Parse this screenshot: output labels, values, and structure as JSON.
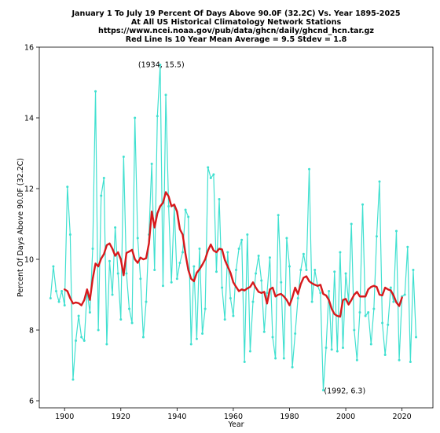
{
  "chart_data": {
    "type": "line",
    "title_lines": [
      "January 1 To July 19 Percent Of Days Above 90.0F (32.2C) Vs. Year 1895-2025",
      "At All US Historical Climatology Network Stations",
      "https://www.ncei.noaa.gov/pub/data/ghcn/daily/ghcnd_hcn.tar.gz",
      "Red Line Is 10 Year Mean  Average = 9.5 Stdev = 1.8"
    ],
    "xlabel": "Year",
    "ylabel": "Percent Of Days Above 90.0F (32.2C)",
    "xlim": [
      1891,
      2031
    ],
    "ylim": [
      5.8,
      16.0
    ],
    "xticks": [
      "1900",
      "1920",
      "1940",
      "1960",
      "1980",
      "2000",
      "2020"
    ],
    "yticks": [
      "6",
      "8",
      "10",
      "12",
      "14",
      "16"
    ],
    "annotations": [
      {
        "text": "(1934, 15.5)",
        "x": 1934,
        "y": 15.5
      },
      {
        "text": "(1992, 6.3)",
        "x": 1992,
        "y": 6.3
      }
    ],
    "colors": {
      "annual": "#40e0d0",
      "mean": "#d7191c"
    },
    "series": [
      {
        "role": "annual",
        "x": [
          1895,
          1896,
          1897,
          1898,
          1899,
          1900,
          1901,
          1902,
          1903,
          1904,
          1905,
          1906,
          1907,
          1908,
          1909,
          1910,
          1911,
          1912,
          1913,
          1914,
          1915,
          1916,
          1917,
          1918,
          1919,
          1920,
          1921,
          1922,
          1923,
          1924,
          1925,
          1926,
          1927,
          1928,
          1929,
          1930,
          1931,
          1932,
          1933,
          1934,
          1935,
          1936,
          1937,
          1938,
          1939,
          1940,
          1941,
          1942,
          1943,
          1944,
          1945,
          1946,
          1947,
          1948,
          1949,
          1950,
          1951,
          1952,
          1953,
          1954,
          1955,
          1956,
          1957,
          1958,
          1959,
          1960,
          1961,
          1962,
          1963,
          1964,
          1965,
          1966,
          1967,
          1968,
          1969,
          1970,
          1971,
          1972,
          1973,
          1974,
          1975,
          1976,
          1977,
          1978,
          1979,
          1980,
          1981,
          1982,
          1983,
          1984,
          1985,
          1986,
          1987,
          1988,
          1989,
          1990,
          1991,
          1992,
          1993,
          1994,
          1995,
          1996,
          1997,
          1998,
          1999,
          2000,
          2001,
          2002,
          2003,
          2004,
          2005,
          2006,
          2007,
          2008,
          2009,
          2010,
          2011,
          2012,
          2013,
          2014,
          2015,
          2016,
          2017,
          2018,
          2019,
          2020,
          2021,
          2022,
          2023,
          2024,
          2025
        ],
        "values": [
          8.9,
          9.8,
          9.1,
          8.8,
          9.1,
          8.7,
          12.05,
          10.7,
          6.6,
          7.7,
          8.4,
          7.8,
          7.7,
          9.1,
          8.5,
          10.3,
          14.75,
          8.0,
          11.8,
          12.3,
          7.6,
          9.95,
          9.0,
          10.9,
          9.6,
          8.3,
          12.9,
          9.6,
          8.6,
          8.2,
          14.0,
          10.6,
          9.45,
          7.8,
          8.8,
          10.7,
          12.7,
          9.7,
          14.05,
          15.5,
          9.25,
          14.65,
          11.5,
          9.35,
          11.5,
          9.45,
          9.9,
          10.2,
          11.4,
          11.2,
          7.6,
          9.8,
          7.75,
          10.3,
          7.9,
          8.6,
          12.6,
          12.3,
          12.4,
          9.65,
          11.7,
          9.2,
          8.3,
          10.2,
          8.9,
          8.4,
          9.7,
          10.3,
          10.55,
          7.1,
          10.7,
          7.4,
          8.8,
          9.6,
          10.1,
          9.4,
          7.95,
          9.05,
          10.05,
          7.8,
          7.2,
          11.25,
          9.35,
          7.2,
          10.6,
          9.8,
          6.95,
          7.9,
          8.9,
          9.7,
          10.15,
          9.7,
          12.55,
          8.8,
          9.7,
          9.25,
          9.05,
          6.3,
          7.5,
          9.1,
          7.45,
          9.65,
          7.4,
          10.2,
          7.5,
          9.6,
          8.8,
          11.0,
          8.0,
          7.15,
          8.5,
          11.55,
          8.4,
          8.5,
          7.6,
          8.6,
          10.65,
          12.2,
          8.2,
          7.3,
          8.15,
          9.2,
          8.8,
          10.8,
          7.15,
          8.95,
          9.0,
          10.35,
          7.1,
          9.7,
          7.8
        ]
      },
      {
        "role": "10-year mean",
        "x": [
          1900,
          1901,
          1902,
          1903,
          1904,
          1905,
          1906,
          1907,
          1908,
          1909,
          1910,
          1911,
          1912,
          1913,
          1914,
          1915,
          1916,
          1917,
          1918,
          1919,
          1920,
          1921,
          1922,
          1923,
          1924,
          1925,
          1926,
          1927,
          1928,
          1929,
          1930,
          1931,
          1932,
          1933,
          1934,
          1935,
          1936,
          1937,
          1938,
          1939,
          1940,
          1941,
          1942,
          1943,
          1944,
          1945,
          1946,
          1947,
          1948,
          1949,
          1950,
          1951,
          1952,
          1953,
          1954,
          1955,
          1956,
          1957,
          1958,
          1959,
          1960,
          1961,
          1962,
          1963,
          1964,
          1965,
          1966,
          1967,
          1968,
          1969,
          1970,
          1971,
          1972,
          1973,
          1974,
          1975,
          1976,
          1977,
          1978,
          1979,
          1980,
          1981,
          1982,
          1983,
          1984,
          1985,
          1986,
          1987,
          1988,
          1989,
          1990,
          1991,
          1992,
          1993,
          1994,
          1995,
          1996,
          1997,
          1998,
          1999,
          2000,
          2001,
          2002,
          2003,
          2004,
          2005,
          2006,
          2007,
          2008,
          2009,
          2010,
          2011,
          2012,
          2013,
          2014,
          2015,
          2016,
          2017,
          2018,
          2019,
          2020
        ],
        "values": [
          9.15,
          9.1,
          8.9,
          8.75,
          8.78,
          8.76,
          8.7,
          8.85,
          9.15,
          8.85,
          9.45,
          9.88,
          9.8,
          10.02,
          10.15,
          10.4,
          10.45,
          10.3,
          10.1,
          10.2,
          10.0,
          9.55,
          10.18,
          10.22,
          10.27,
          10.0,
          9.9,
          10.05,
          10.0,
          10.03,
          10.45,
          11.35,
          10.9,
          11.3,
          11.5,
          11.6,
          11.9,
          11.78,
          11.5,
          11.55,
          11.35,
          10.85,
          10.7,
          10.15,
          9.7,
          9.45,
          9.38,
          9.62,
          9.72,
          9.85,
          10.0,
          10.25,
          10.42,
          10.25,
          10.2,
          10.3,
          10.28,
          9.98,
          9.8,
          9.62,
          9.35,
          9.22,
          9.1,
          9.15,
          9.12,
          9.18,
          9.22,
          9.35,
          9.2,
          9.08,
          9.05,
          9.08,
          8.75,
          9.15,
          9.2,
          8.95,
          9.0,
          9.02,
          8.95,
          8.85,
          8.7,
          8.92,
          9.2,
          9.02,
          9.3,
          9.48,
          9.52,
          9.38,
          9.32,
          9.28,
          9.25,
          9.28,
          9.02,
          8.98,
          8.85,
          8.6,
          8.45,
          8.4,
          8.38,
          8.85,
          8.88,
          8.72,
          8.85,
          9.0,
          9.08,
          8.95,
          8.95,
          8.95,
          9.15,
          9.22,
          9.25,
          9.22,
          9.0,
          8.98,
          9.2,
          9.15,
          9.12,
          8.98,
          8.78,
          8.68,
          8.92
        ]
      }
    ]
  }
}
